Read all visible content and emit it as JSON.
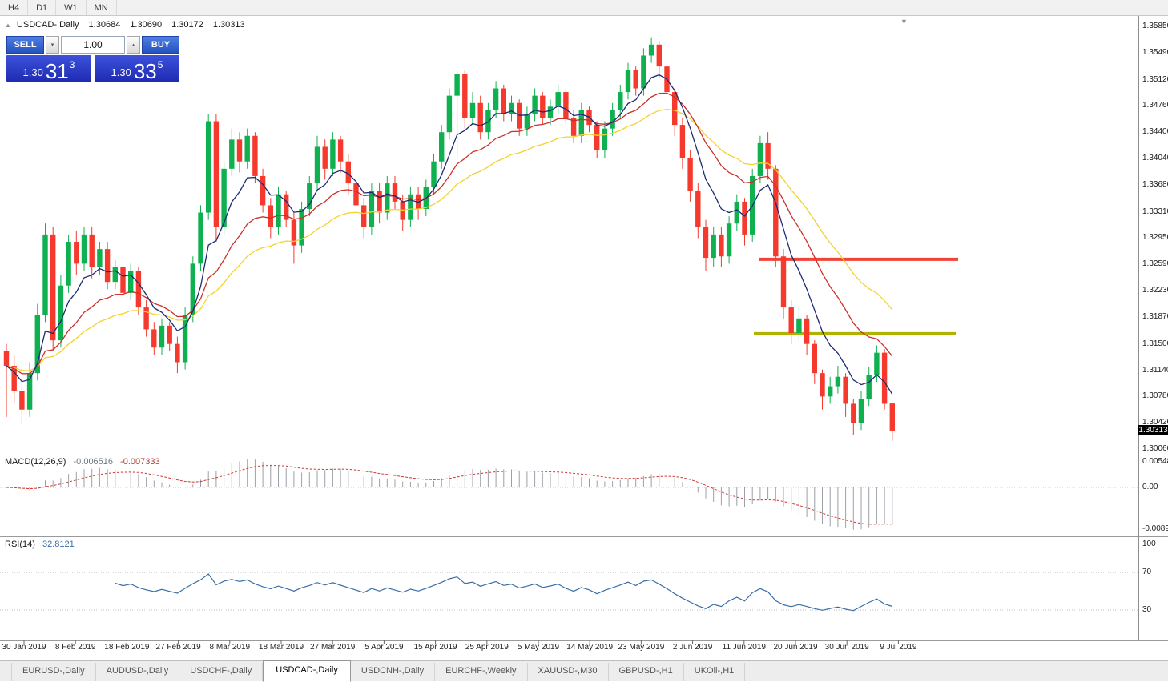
{
  "colors": {
    "candle_up": "#0eb04f",
    "candle_down": "#f5392c",
    "ma_fast": "#1b2a72",
    "ma_mid": "#c9302a",
    "ma_slow": "#f2d22e",
    "macd_histogram": "#9aa0a8",
    "macd_signal": "#cc3a33",
    "rsi_line": "#3a6ea8",
    "resistance_line": "#f44336",
    "support_line": "#b0b400",
    "trade_button_blue": "#2453c0",
    "price_box_blue": "#1e2cb2",
    "price_tag_bg": "#000000"
  },
  "icons": {
    "collapse": "▲",
    "chart_shift": "▼",
    "spin_up": "▴",
    "spin_down": "▾"
  },
  "toolbar": {
    "timeframes": [
      "H4",
      "D1",
      "W1",
      "MN"
    ]
  },
  "chart": {
    "symbol_header": {
      "title": "USDCAD-,Daily",
      "ohlc": [
        "1.30684",
        "1.30690",
        "1.30172",
        "1.30313"
      ]
    },
    "trade_panel": {
      "sell_label": "SELL",
      "buy_label": "BUY",
      "volume": "1.00",
      "sell_price": {
        "base": "1.30",
        "big": "31",
        "sup": "3"
      },
      "buy_price": {
        "base": "1.30",
        "big": "33",
        "sup": "5"
      }
    },
    "price_axis": [
      "1.35850",
      "1.35490",
      "1.35120",
      "1.34760",
      "1.34400",
      "1.34040",
      "1.33680",
      "1.33310",
      "1.32950",
      "1.32590",
      "1.32230",
      "1.31870",
      "1.31500",
      "1.31140",
      "1.30780",
      "1.30420",
      "1.30060"
    ],
    "current_price": "1.30313"
  },
  "macd": {
    "label": "MACD(12,26,9)",
    "values": [
      "-0.006516",
      "-0.007333"
    ],
    "axis": [
      "0.005484",
      "0.00",
      "-0.008975"
    ]
  },
  "rsi": {
    "label": "RSI(14)",
    "value": "32.8121",
    "axis": [
      "100",
      "70",
      "30"
    ],
    "levels": [
      70,
      30
    ]
  },
  "date_axis": [
    "30 Jan 2019",
    "8 Feb 2019",
    "18 Feb 2019",
    "27 Feb 2019",
    "8 Mar 2019",
    "18 Mar 2019",
    "27 Mar 2019",
    "5 Apr 2019",
    "15 Apr 2019",
    "25 Apr 2019",
    "5 May 2019",
    "14 May 2019",
    "23 May 2019",
    "2 Jun 2019",
    "11 Jun 2019",
    "20 Jun 2019",
    "30 Jun 2019",
    "9 Jul 2019"
  ],
  "bottom_tabs": {
    "active_index": 3,
    "items": [
      "EURUSD-,Daily",
      "AUDUSD-,Daily",
      "USDCHF-,Daily",
      "USDCAD-,Daily",
      "USDCNH-,Daily",
      "EURCHF-,Weekly",
      "XAUUSD-,M30",
      "GBPUSD-,H1",
      "UKOil-,H1"
    ]
  },
  "chart_data": {
    "type": "candlestick",
    "symbol": "USDCAD-,Daily",
    "price_range": [
      1.3006,
      1.3585
    ],
    "x_range_dates": [
      "30 Jan 2019",
      "12 Jul 2019"
    ],
    "candles": [
      [
        1.314,
        1.315,
        1.305,
        1.312
      ],
      [
        1.312,
        1.3135,
        1.307,
        1.3085
      ],
      [
        1.3085,
        1.31,
        1.304,
        1.306
      ],
      [
        1.306,
        1.3125,
        1.305,
        1.311
      ],
      [
        1.311,
        1.3205,
        1.31,
        1.319
      ],
      [
        1.319,
        1.3315,
        1.318,
        1.33
      ],
      [
        1.33,
        1.331,
        1.314,
        1.3155
      ],
      [
        1.3155,
        1.3245,
        1.3145,
        1.323
      ],
      [
        1.323,
        1.33,
        1.322,
        1.329
      ],
      [
        1.329,
        1.3305,
        1.3245,
        1.326
      ],
      [
        1.326,
        1.331,
        1.325,
        1.33
      ],
      [
        1.33,
        1.331,
        1.324,
        1.3255
      ],
      [
        1.3255,
        1.329,
        1.3245,
        1.328
      ],
      [
        1.328,
        1.329,
        1.3225,
        1.3235
      ],
      [
        1.3235,
        1.3265,
        1.3225,
        1.3255
      ],
      [
        1.3255,
        1.3265,
        1.321,
        1.322
      ],
      [
        1.322,
        1.326,
        1.321,
        1.325
      ],
      [
        1.325,
        1.3255,
        1.319,
        1.32
      ],
      [
        1.32,
        1.321,
        1.316,
        1.317
      ],
      [
        1.317,
        1.318,
        1.3135,
        1.3145
      ],
      [
        1.3145,
        1.3185,
        1.3135,
        1.3175
      ],
      [
        1.3175,
        1.318,
        1.314,
        1.315
      ],
      [
        1.315,
        1.316,
        1.311,
        1.3125
      ],
      [
        1.3125,
        1.32,
        1.3115,
        1.319
      ],
      [
        1.319,
        1.327,
        1.318,
        1.326
      ],
      [
        1.326,
        1.334,
        1.325,
        1.333
      ],
      [
        1.333,
        1.3465,
        1.332,
        1.3455
      ],
      [
        1.3455,
        1.3465,
        1.329,
        1.331
      ],
      [
        1.331,
        1.34,
        1.33,
        1.339
      ],
      [
        1.339,
        1.3445,
        1.338,
        1.343
      ],
      [
        1.343,
        1.344,
        1.3385,
        1.34
      ],
      [
        1.34,
        1.3445,
        1.339,
        1.3435
      ],
      [
        1.3435,
        1.344,
        1.337,
        1.338
      ],
      [
        1.338,
        1.339,
        1.333,
        1.334
      ],
      [
        1.334,
        1.335,
        1.3295,
        1.331
      ],
      [
        1.331,
        1.3365,
        1.33,
        1.3355
      ],
      [
        1.3355,
        1.336,
        1.331,
        1.332
      ],
      [
        1.332,
        1.333,
        1.326,
        1.3285
      ],
      [
        1.3285,
        1.3345,
        1.3275,
        1.3335
      ],
      [
        1.3335,
        1.338,
        1.3325,
        1.337
      ],
      [
        1.337,
        1.3435,
        1.336,
        1.342
      ],
      [
        1.342,
        1.343,
        1.3375,
        1.339
      ],
      [
        1.339,
        1.344,
        1.338,
        1.343
      ],
      [
        1.343,
        1.3435,
        1.3385,
        1.34
      ],
      [
        1.34,
        1.341,
        1.3355,
        1.337
      ],
      [
        1.337,
        1.338,
        1.3325,
        1.334
      ],
      [
        1.334,
        1.335,
        1.3295,
        1.331
      ],
      [
        1.331,
        1.337,
        1.33,
        1.336
      ],
      [
        1.336,
        1.337,
        1.3315,
        1.333
      ],
      [
        1.333,
        1.338,
        1.332,
        1.337
      ],
      [
        1.337,
        1.338,
        1.3335,
        1.3345
      ],
      [
        1.3345,
        1.3355,
        1.3305,
        1.332
      ],
      [
        1.332,
        1.3365,
        1.331,
        1.3355
      ],
      [
        1.3355,
        1.3365,
        1.332,
        1.3335
      ],
      [
        1.3335,
        1.3375,
        1.3325,
        1.3365
      ],
      [
        1.3365,
        1.341,
        1.3355,
        1.34
      ],
      [
        1.34,
        1.345,
        1.339,
        1.344
      ],
      [
        1.344,
        1.35,
        1.343,
        1.349
      ],
      [
        1.349,
        1.3525,
        1.3405,
        1.352
      ],
      [
        1.352,
        1.3525,
        1.3445,
        1.346
      ],
      [
        1.346,
        1.3495,
        1.345,
        1.348
      ],
      [
        1.348,
        1.349,
        1.343,
        1.344
      ],
      [
        1.344,
        1.348,
        1.343,
        1.347
      ],
      [
        1.347,
        1.351,
        1.346,
        1.35
      ],
      [
        1.35,
        1.3505,
        1.3455,
        1.3465
      ],
      [
        1.3465,
        1.349,
        1.3455,
        1.348
      ],
      [
        1.348,
        1.3485,
        1.3435,
        1.3445
      ],
      [
        1.3445,
        1.3475,
        1.3435,
        1.3465
      ],
      [
        1.3465,
        1.35,
        1.3455,
        1.349
      ],
      [
        1.349,
        1.3495,
        1.345,
        1.346
      ],
      [
        1.346,
        1.3485,
        1.345,
        1.3475
      ],
      [
        1.3475,
        1.3505,
        1.3465,
        1.3495
      ],
      [
        1.3495,
        1.35,
        1.345,
        1.346
      ],
      [
        1.346,
        1.347,
        1.3425,
        1.3435
      ],
      [
        1.3435,
        1.348,
        1.3425,
        1.347
      ],
      [
        1.347,
        1.3475,
        1.344,
        1.345
      ],
      [
        1.345,
        1.3455,
        1.3405,
        1.3415
      ],
      [
        1.3415,
        1.3455,
        1.3405,
        1.3445
      ],
      [
        1.3445,
        1.348,
        1.3435,
        1.347
      ],
      [
        1.347,
        1.3505,
        1.346,
        1.3495
      ],
      [
        1.3495,
        1.3535,
        1.3485,
        1.3525
      ],
      [
        1.3525,
        1.353,
        1.349,
        1.35
      ],
      [
        1.35,
        1.3555,
        1.349,
        1.3545
      ],
      [
        1.3545,
        1.357,
        1.3535,
        1.356
      ],
      [
        1.356,
        1.3565,
        1.3515,
        1.353
      ],
      [
        1.353,
        1.3535,
        1.348,
        1.3495
      ],
      [
        1.3495,
        1.35,
        1.3435,
        1.345
      ],
      [
        1.345,
        1.346,
        1.339,
        1.3405
      ],
      [
        1.3405,
        1.3415,
        1.3345,
        1.336
      ],
      [
        1.336,
        1.337,
        1.3295,
        1.331
      ],
      [
        1.331,
        1.332,
        1.325,
        1.3268
      ],
      [
        1.3268,
        1.331,
        1.3255,
        1.33
      ],
      [
        1.33,
        1.331,
        1.3255,
        1.327
      ],
      [
        1.327,
        1.3325,
        1.326,
        1.3315
      ],
      [
        1.3315,
        1.3355,
        1.3305,
        1.3345
      ],
      [
        1.3345,
        1.335,
        1.3285,
        1.33
      ],
      [
        1.33,
        1.339,
        1.329,
        1.338
      ],
      [
        1.338,
        1.3435,
        1.337,
        1.3425
      ],
      [
        1.3425,
        1.344,
        1.3375,
        1.339
      ],
      [
        1.339,
        1.3395,
        1.3255,
        1.327
      ],
      [
        1.327,
        1.328,
        1.3185,
        1.32
      ],
      [
        1.32,
        1.321,
        1.315,
        1.3165
      ],
      [
        1.3165,
        1.32,
        1.3155,
        1.3185
      ],
      [
        1.3185,
        1.319,
        1.3135,
        1.315
      ],
      [
        1.315,
        1.3155,
        1.3095,
        1.311
      ],
      [
        1.311,
        1.3115,
        1.306,
        1.3078
      ],
      [
        1.3078,
        1.3105,
        1.3068,
        1.3092
      ],
      [
        1.3092,
        1.312,
        1.3082,
        1.3105
      ],
      [
        1.3105,
        1.311,
        1.305,
        1.3068
      ],
      [
        1.3068,
        1.3075,
        1.3025,
        1.3042
      ],
      [
        1.3042,
        1.3085,
        1.3032,
        1.3075
      ],
      [
        1.3075,
        1.3118,
        1.3065,
        1.3108
      ],
      [
        1.3108,
        1.3148,
        1.3098,
        1.3138
      ],
      [
        1.3138,
        1.3143,
        1.306,
        1.3068
      ],
      [
        1.30684,
        1.3069,
        1.30172,
        1.30313
      ]
    ],
    "moving_averages": [
      {
        "name": "fast-ema",
        "period": 7,
        "color": "#1b2a72"
      },
      {
        "name": "mid-ema",
        "period": 16,
        "color": "#c9302a"
      },
      {
        "name": "slow-ema",
        "period": 28,
        "color": "#f2d22e"
      }
    ],
    "hlines": [
      {
        "name": "resistance",
        "price": 1.3266,
        "color": "#f44336",
        "thickness": 4
      },
      {
        "name": "support",
        "price": 1.3164,
        "color": "#b0b400",
        "thickness": 4
      }
    ],
    "indicators": [
      {
        "type": "MACD",
        "params": [
          12,
          26,
          9
        ],
        "last_values": [
          -0.006516,
          -0.007333
        ]
      },
      {
        "type": "RSI",
        "params": [
          14
        ],
        "last_value": 32.8121,
        "levels": [
          70,
          30
        ]
      }
    ]
  }
}
